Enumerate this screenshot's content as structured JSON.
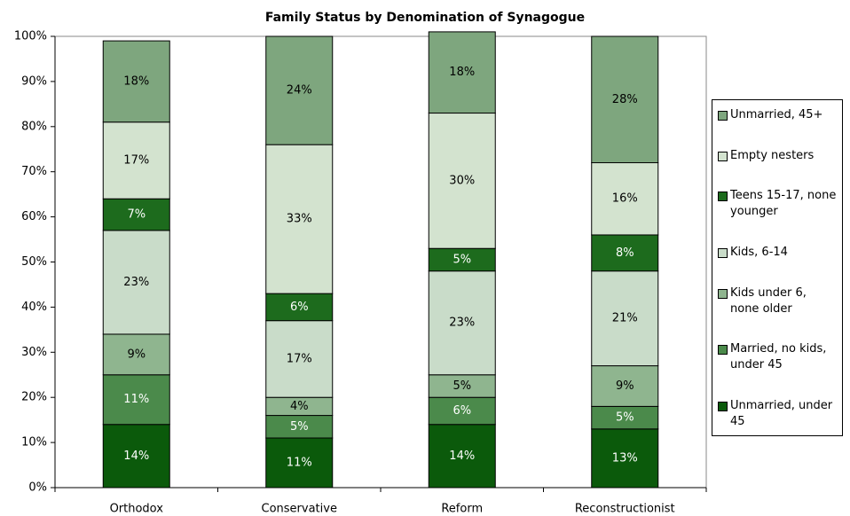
{
  "chart_data": {
    "type": "stacked_bar",
    "title": "Family Status by Denomination of Synagogue",
    "categories": [
      "Orthodox",
      "Conservative",
      "Reform",
      "Reconstructionist"
    ],
    "series": [
      {
        "name": "Unmarried,  under 45",
        "color": "#0b5a0b",
        "values": [
          14,
          11,
          14,
          13
        ],
        "value_labels": [
          "14%",
          "11%",
          "14%",
          "13%"
        ]
      },
      {
        "name": "Married, no kids, under 45",
        "color": "#4b8a4b",
        "values": [
          11,
          5,
          6,
          5
        ],
        "value_labels": [
          "11%",
          "5%",
          "6%",
          "5%"
        ]
      },
      {
        "name": "Kids under 6, none older",
        "color": "#8fb58f",
        "values": [
          9,
          4,
          5,
          9
        ],
        "value_labels": [
          "9%",
          "4%",
          "5%",
          "9%"
        ]
      },
      {
        "name": "Kids, 6-14",
        "color": "#c9dcc9",
        "values": [
          23,
          17,
          23,
          21
        ],
        "value_labels": [
          "23%",
          "17%",
          "23%",
          "21%"
        ]
      },
      {
        "name": "Teens 15-17, none younger",
        "color": "#1d6b1d",
        "values": [
          7,
          6,
          5,
          8
        ],
        "value_labels": [
          "7%",
          "6%",
          "5%",
          "8%"
        ]
      },
      {
        "name": "Empty nesters",
        "color": "#d3e3cf",
        "values": [
          17,
          33,
          30,
          16
        ],
        "value_labels": [
          "17%",
          "33%",
          "30%",
          "16%"
        ]
      },
      {
        "name": "Unmarried,  45+",
        "color": "#7ea67e",
        "values": [
          18,
          24,
          18,
          28
        ],
        "value_labels": [
          "18%",
          "24%",
          "18%",
          "28%"
        ]
      }
    ],
    "ylim": [
      0,
      100
    ],
    "yticks": [
      {
        "value": 0,
        "label": "0%"
      },
      {
        "value": 10,
        "label": "10%"
      },
      {
        "value": 20,
        "label": "20%"
      },
      {
        "value": 30,
        "label": "30%"
      },
      {
        "value": 40,
        "label": "40%"
      },
      {
        "value": 50,
        "label": "50%"
      },
      {
        "value": 60,
        "label": "60%"
      },
      {
        "value": 70,
        "label": "70%"
      },
      {
        "value": 80,
        "label": "80%"
      },
      {
        "value": 90,
        "label": "90%"
      },
      {
        "value": 100,
        "label": "100%"
      }
    ],
    "grid": false,
    "legend": "right"
  }
}
